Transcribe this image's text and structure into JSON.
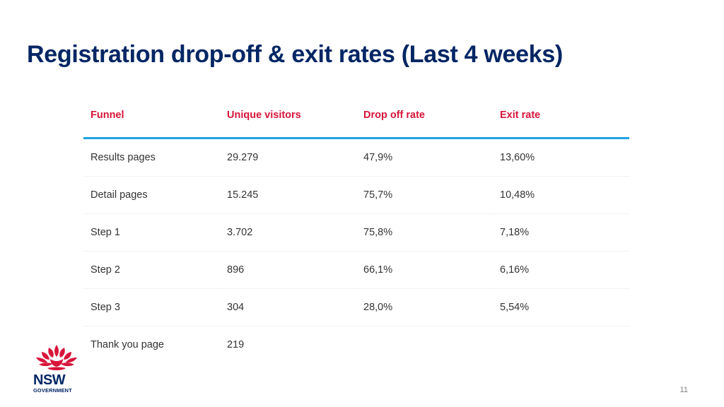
{
  "slide": {
    "title": "Registration drop-off & exit rates (Last 4 weeks)",
    "page_number": "11"
  },
  "table": {
    "headers": [
      "Funnel",
      "Unique visitors",
      "Drop off rate",
      "Exit rate"
    ],
    "rows": [
      [
        "Results pages",
        "29.279",
        "47,9%",
        "13,60%"
      ],
      [
        "Detail pages",
        "15.245",
        "75,7%",
        "10,48%"
      ],
      [
        "Step 1",
        "3.702",
        "75,8%",
        "7,18%"
      ],
      [
        "Step 2",
        "896",
        "66,1%",
        "6,16%"
      ],
      [
        "Step 3",
        "304",
        "28,0%",
        "5,54%"
      ],
      [
        "Thank you page",
        "219",
        "",
        ""
      ]
    ]
  },
  "logo": {
    "name": "NSW",
    "subtitle": "GOVERNMENT"
  },
  "colors": {
    "title": "#002664",
    "header_text": "#d7153a",
    "header_rule": "#1ea3e0",
    "waratah_red": "#d7153a"
  }
}
